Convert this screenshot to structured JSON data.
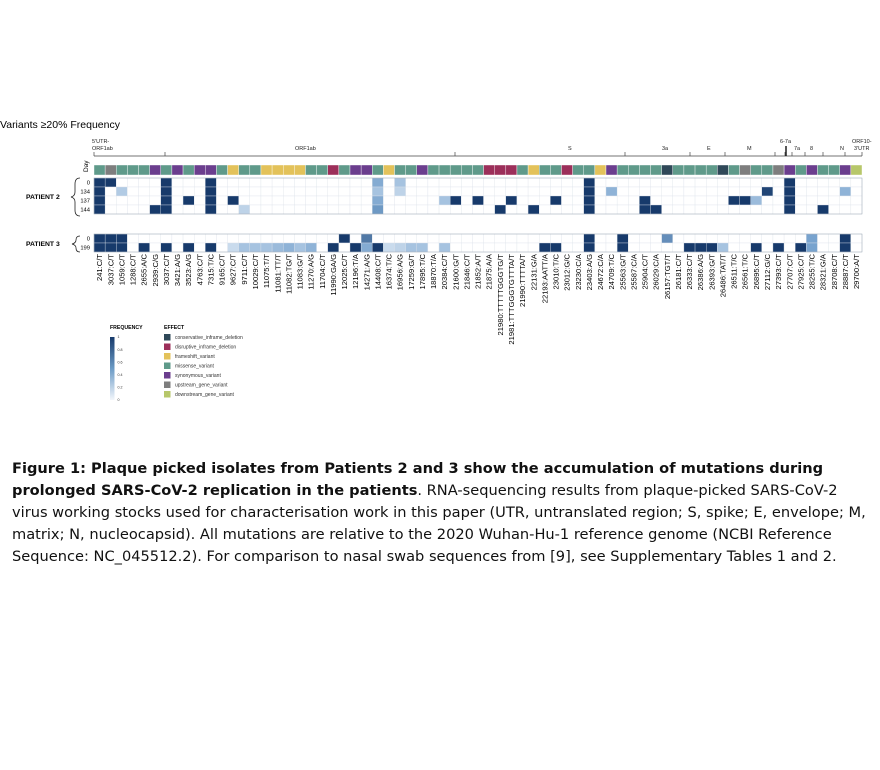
{
  "figure": {
    "title": "Variants ≥20% Frequency",
    "day_label": "Day",
    "gene_labels": [
      "5'UTR-\nORF1ab",
      "ORF1ab",
      "S",
      "3a",
      "E",
      "M",
      "6-7a",
      "7a",
      "8",
      "N",
      "ORF10-\n3'UTR"
    ],
    "gene_names": {
      "utr5": "5'UTR-",
      "orf1ab_small": "ORF1ab",
      "orf1ab": "ORF1ab",
      "s": "S",
      "a3": "3a",
      "e": "E",
      "m": "M",
      "a67": "6-7a",
      "a7": "7a",
      "g8": "8",
      "n": "N",
      "orf10": "ORF10-",
      "utr3": "3'UTR"
    },
    "patients": [
      {
        "name": "PATIENT 2",
        "days": [
          "0",
          "134",
          "137",
          "144"
        ]
      },
      {
        "name": "PATIENT 3",
        "days": [
          "0",
          "199"
        ]
      }
    ],
    "mutations": [
      "241:C/T",
      "3037:C/T",
      "1059:C/T",
      "1288:C/T",
      "2655:A/C",
      "2939:C/G",
      "3037:C/T",
      "3421:A/G",
      "3523:A/G",
      "4763:C/T",
      "7315:T/C",
      "9165:C/T",
      "9627:C/T",
      "9711:C/T",
      "10029:C/T",
      "11075:T/T",
      "11081:TT/T",
      "11082:TG/T",
      "11083:G/T",
      "11270:A/G",
      "11704:C/T",
      "11990:GA/G",
      "12025:C/T",
      "12196:T/A",
      "14271:A/G",
      "14408:C/T",
      "16374:T/C",
      "16956:A/G",
      "17259:G/T",
      "17895:T/C",
      "18870:T/A",
      "20384:C/T",
      "21600:G/T",
      "21846:C/T",
      "21852:A/T",
      "21875:A/A",
      "21980:TTTTTGGGTG/T",
      "21981:TTTGGGTGTTTA/T",
      "21990:TTTTA/T",
      "22131:G/A",
      "22193:AATT/A",
      "23010:T/C",
      "23012:G/C",
      "23230:C/A",
      "23403:A/G",
      "24672:C/A",
      "24709:T/C",
      "25563:G/T",
      "25587:C/A",
      "25904:C/T",
      "26029:C/A",
      "26157:TGT/T",
      "26181:C/T",
      "26333:C/T",
      "26386:A/G",
      "26393:G/T",
      "26486:TAT/T",
      "26511:T/C",
      "26561:T/C",
      "26895:C/T",
      "27112:G/C",
      "27393:C/T",
      "27707:C/T",
      "27925:C/T",
      "28255:T/C",
      "28321:G/A",
      "28708:C/T",
      "28887:C/T",
      "29700:A/T"
    ],
    "effect_colors": [
      "#2f4858",
      "#9c2f5a",
      "#e3c25a",
      "#5f9a8a",
      "#6b3e8e",
      "#7e7e7e",
      "#b7c76a"
    ],
    "effect_track": [
      3,
      5,
      3,
      3,
      3,
      4,
      3,
      4,
      3,
      4,
      4,
      3,
      2,
      3,
      3,
      2,
      2,
      2,
      2,
      3,
      3,
      1,
      3,
      4,
      4,
      3,
      2,
      3,
      3,
      4,
      3,
      3,
      3,
      3,
      3,
      1,
      1,
      1,
      3,
      2,
      3,
      3,
      1,
      3,
      3,
      2,
      4,
      3,
      3,
      3,
      3,
      0,
      3,
      3,
      3,
      3,
      0,
      3,
      5,
      3,
      3,
      5,
      4,
      3,
      4,
      3,
      3,
      4,
      6
    ],
    "legend": {
      "frequency_title": "FREQUENCY",
      "effect_title": "EFFECT",
      "ticks": [
        "1",
        "0.8",
        "0.6",
        "0.4",
        "0.2",
        "0"
      ],
      "effects": [
        "conservative_inframe_deletion",
        "disruptive_inframe_deletion",
        "frameshift_variant",
        "missense_variant",
        "synonymous_variant",
        "upstream_gene_variant",
        "downstream_gene_variant"
      ]
    },
    "heatmap": {
      "p2": [
        [
          1,
          1,
          0,
          0,
          0,
          0,
          1,
          0,
          0,
          0,
          1,
          0,
          0,
          0,
          0,
          0,
          0,
          0,
          0,
          0,
          0,
          0,
          0,
          0,
          0,
          0.45,
          0,
          0.3,
          0,
          0,
          0,
          0,
          0,
          0,
          0,
          0,
          0,
          0,
          0,
          0,
          0,
          0,
          0,
          0,
          1,
          0,
          0,
          0,
          0,
          0,
          0,
          0,
          0,
          0,
          0,
          0,
          0,
          0,
          0,
          0,
          0,
          0,
          1,
          0,
          0,
          0,
          0,
          0,
          0
        ],
        [
          1,
          0,
          0.25,
          0,
          0,
          0,
          1,
          0,
          0,
          0,
          1,
          0,
          0,
          0,
          0,
          0,
          0,
          0,
          0,
          0,
          0,
          0,
          0,
          0,
          0,
          0.3,
          0,
          0.2,
          0,
          0,
          0,
          0,
          0,
          0,
          0,
          0,
          0,
          0,
          0,
          0,
          0,
          0,
          0,
          0,
          1,
          0,
          0.4,
          0,
          0,
          0,
          0,
          0,
          0,
          0,
          0,
          0,
          0,
          0,
          0,
          0,
          0.95,
          0,
          1,
          0,
          0,
          0,
          0,
          0.4,
          0
        ],
        [
          1,
          0,
          0,
          0,
          0,
          0,
          1,
          0,
          1,
          0,
          1,
          0,
          1,
          0,
          0,
          0,
          0,
          0,
          0,
          0,
          0,
          0,
          0,
          0,
          0,
          0.45,
          0,
          0,
          0,
          0,
          0,
          0.3,
          1,
          0,
          1,
          0,
          0,
          1,
          0,
          0,
          0,
          1,
          0,
          0,
          1,
          0,
          0,
          0,
          0,
          1,
          0,
          0,
          0,
          0,
          0,
          0,
          0,
          1,
          1,
          0.35,
          0,
          0,
          1,
          0,
          0,
          0,
          0,
          0,
          0
        ],
        [
          1,
          0,
          0,
          0,
          0,
          1,
          1,
          0,
          0,
          0,
          1,
          0,
          0,
          0.2,
          0,
          0,
          0,
          0,
          0,
          0,
          0,
          0,
          0,
          0,
          0,
          0.55,
          0,
          0,
          0,
          0,
          0,
          0,
          0,
          0,
          0,
          0,
          1,
          0,
          0,
          1,
          0,
          0,
          0,
          0,
          1,
          0,
          0,
          0,
          0,
          1,
          1,
          0,
          0,
          0,
          0,
          0,
          0,
          0,
          0,
          0,
          0,
          0,
          1,
          0,
          0,
          1,
          0,
          0,
          0
        ]
      ],
      "p3": [
        [
          1,
          1,
          1,
          0,
          0,
          0,
          0,
          0,
          0,
          0,
          0,
          0,
          0,
          0,
          0,
          0,
          0,
          0,
          0,
          0,
          0,
          0,
          1,
          0,
          0.7,
          0,
          0,
          0,
          0,
          0,
          0,
          0,
          0,
          0,
          0,
          0,
          0,
          0,
          0,
          0,
          0,
          0,
          0,
          0,
          1,
          0,
          0,
          1,
          0,
          0,
          0,
          0.6,
          0,
          0,
          0,
          0,
          0,
          0,
          0,
          0,
          0,
          0,
          0,
          0,
          0.5,
          0,
          0,
          1,
          0
        ],
        [
          1,
          1,
          1,
          0,
          1,
          0,
          1,
          0,
          1,
          0,
          1,
          0,
          0.15,
          0.3,
          0.3,
          0.3,
          0.35,
          0.4,
          0.3,
          0.4,
          0,
          1,
          0,
          1,
          0.45,
          1,
          0.15,
          0.2,
          0.3,
          0.3,
          0,
          0.3,
          0,
          0,
          0,
          0,
          0,
          0,
          0,
          0,
          1,
          1,
          0,
          0,
          1,
          0,
          0,
          1,
          0,
          0,
          0,
          0,
          0,
          1,
          1,
          1,
          0.3,
          0,
          0,
          1,
          0,
          1,
          0,
          1,
          0.5,
          0,
          0,
          1,
          0
        ]
      ]
    }
  },
  "caption": {
    "bold": "Figure 1: Plaque picked isolates from Patients 2 and 3 show the accumulation of mutations during prolonged SARS-CoV-2 replication in the patients",
    "text": ". RNA-sequencing results from plaque-picked SARS-CoV-2 virus working stocks used for characterisation work in this paper (UTR, untranslated region; S, spike; E, envelope; M, matrix; N, nucleocapsid). All mutations are relative to the 2020 Wuhan-Hu-1 reference genome (NCBI Reference Sequence: NC_045512.2). For comparison to nasal swab sequences from [9], see Supplementary Tables 1 and 2."
  }
}
